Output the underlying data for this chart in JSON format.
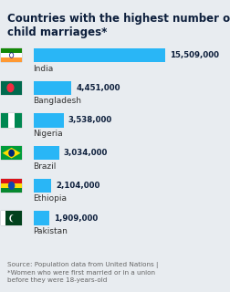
{
  "title_line1": "Countries with the highest number of",
  "title_line2": "child marriages*",
  "countries": [
    "India",
    "Bangladesh",
    "Nigeria",
    "Brazil",
    "Ethiopia",
    "Pakistan"
  ],
  "values": [
    15509000,
    4451000,
    3538000,
    3034000,
    2104000,
    1909000
  ],
  "labels": [
    "15,509,000",
    "4,451,000",
    "3,538,000",
    "3,034,000",
    "2,104,000",
    "1,909,000"
  ],
  "bar_color": "#29B6F6",
  "bg_color": "#e8ecf0",
  "title_color": "#0d1f3c",
  "label_color": "#0d1f3c",
  "country_color": "#333333",
  "source_color": "#666666",
  "source_text": "Source: Population data from United Nations |\n*Women who were first married or in a union\nbefore they were 18-years-old",
  "flag_colors": {
    "India": [
      [
        "#FF9933",
        "#FF9933",
        "#FF9933"
      ],
      [
        "#FFFFFF",
        "#000080",
        "#FFFFFF"
      ],
      [
        "#138808",
        "#138808",
        "#138808"
      ]
    ],
    "Bangladesh": [
      [
        "#006A4E",
        "#006A4E",
        "#006A4E"
      ],
      [
        "#006A4E",
        "#F42A41",
        "#006A4E"
      ],
      [
        "#006A4E",
        "#006A4E",
        "#006A4E"
      ]
    ],
    "Nigeria": [
      [
        "#008751",
        "#FFFFFF",
        "#008751"
      ],
      [
        "#008751",
        "#FFFFFF",
        "#008751"
      ],
      [
        "#008751",
        "#FFFFFF",
        "#008751"
      ]
    ],
    "Brazil": [
      [
        "#009C3B",
        "#009C3B",
        "#009C3B"
      ],
      [
        "#FEDD00",
        "#002776",
        "#FEDD00"
      ],
      [
        "#009C3B",
        "#009C3B",
        "#009C3B"
      ]
    ],
    "Ethiopia": [
      [
        "#078930",
        "#078930",
        "#078930"
      ],
      [
        "#FCDD09",
        "#FCDD09",
        "#FCDD09"
      ],
      [
        "#DA121A",
        "#DA121A",
        "#DA121A"
      ]
    ],
    "Pakistan": [
      [
        "#01411C",
        "#01411C",
        "#FFFFFF"
      ],
      [
        "#01411C",
        "#01411C",
        "#FFFFFF"
      ],
      [
        "#01411C",
        "#01411C",
        "#FFFFFF"
      ]
    ]
  }
}
